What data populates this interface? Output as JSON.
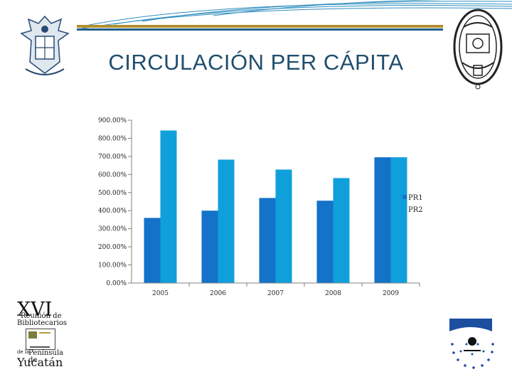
{
  "slide": {
    "title": "CIRCULACIÓN PER CÁPITA"
  },
  "logos": {
    "left_top": "university-crest-left",
    "right_top": "universidad-autonoma-yucatan-seal",
    "bottom_left_lines": [
      "XVI",
      "Reunión de",
      "Bibliotecarios",
      "de la",
      "Península de",
      "Yucatán"
    ],
    "bottom_right": "dotted-circle-logo"
  },
  "colors": {
    "series1": "#1472c9",
    "series2": "#0fa0dc",
    "title": "#1f4e6e",
    "band": "#2f8fbf"
  },
  "chart_data": {
    "type": "bar",
    "categories": [
      "2005",
      "2006",
      "2007",
      "2008",
      "2009"
    ],
    "series": [
      {
        "name": "PR1",
        "values": [
          360,
          400,
          470,
          455,
          695
        ]
      },
      {
        "name": "PR2",
        "values": [
          843,
          682,
          627,
          580,
          695
        ]
      }
    ],
    "yticks": [
      "0.00%",
      "100.00%",
      "200.00%",
      "300.00%",
      "400.00%",
      "500.00%",
      "600.00%",
      "700.00%",
      "800.00%",
      "900.00%"
    ],
    "ylim": [
      0,
      900
    ],
    "legend_position": "right",
    "grid": false
  }
}
